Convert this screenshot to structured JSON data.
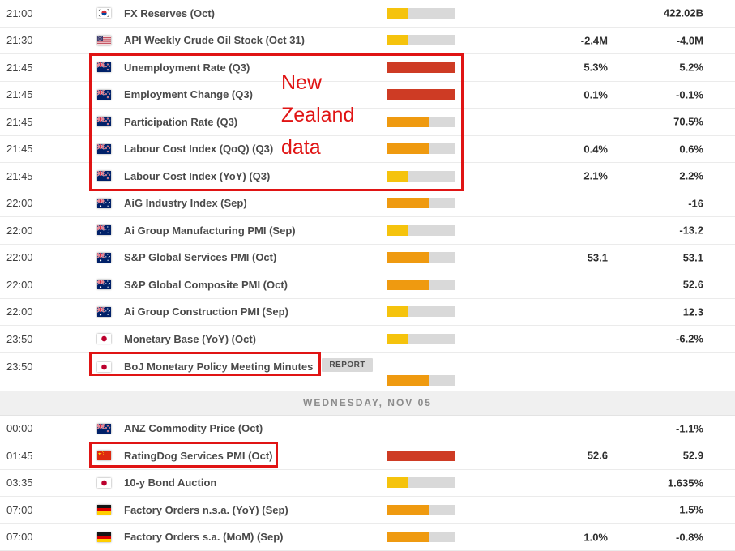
{
  "colors": {
    "impact_low": "#F5C30D",
    "impact_medium": "#EF9A10",
    "impact_high": "#CE3B24",
    "impact_track": "#D9D9D9",
    "annotation_red": "#E01414"
  },
  "annotations": {
    "nz_note": "New Zealand data",
    "nz_note_lines": [
      "New",
      "Zealand",
      "data"
    ]
  },
  "table": {
    "rows": [
      {
        "time": "21:00",
        "country": "south-korea",
        "event": "FX Reserves (Oct)",
        "impact": "low",
        "consensus": "",
        "previous": "422.02B"
      },
      {
        "time": "21:30",
        "country": "united-states",
        "event": "API Weekly Crude Oil Stock (Oct 31)",
        "impact": "low",
        "consensus": "-2.4M",
        "previous": "-4.0M"
      },
      {
        "time": "21:45",
        "country": "new-zealand",
        "event": "Unemployment Rate (Q3)",
        "impact": "high",
        "consensus": "5.3%",
        "previous": "5.2%"
      },
      {
        "time": "21:45",
        "country": "new-zealand",
        "event": "Employment Change (Q3)",
        "impact": "high",
        "consensus": "0.1%",
        "previous": "-0.1%"
      },
      {
        "time": "21:45",
        "country": "new-zealand",
        "event": "Participation Rate (Q3)",
        "impact": "medium",
        "consensus": "",
        "previous": "70.5%"
      },
      {
        "time": "21:45",
        "country": "new-zealand",
        "event": "Labour Cost Index (QoQ) (Q3)",
        "impact": "medium",
        "consensus": "0.4%",
        "previous": "0.6%"
      },
      {
        "time": "21:45",
        "country": "new-zealand",
        "event": "Labour Cost Index (YoY) (Q3)",
        "impact": "low",
        "consensus": "2.1%",
        "previous": "2.2%"
      },
      {
        "time": "22:00",
        "country": "australia",
        "event": "AiG Industry Index (Sep)",
        "impact": "medium",
        "consensus": "",
        "previous": "-16"
      },
      {
        "time": "22:00",
        "country": "australia",
        "event": "Ai Group Manufacturing PMI (Sep)",
        "impact": "low",
        "consensus": "",
        "previous": "-13.2"
      },
      {
        "time": "22:00",
        "country": "australia",
        "event": "S&P Global Services PMI (Oct)",
        "impact": "medium",
        "consensus": "53.1",
        "previous": "53.1"
      },
      {
        "time": "22:00",
        "country": "australia",
        "event": "S&P Global Composite PMI (Oct)",
        "impact": "medium",
        "consensus": "",
        "previous": "52.6"
      },
      {
        "time": "22:00",
        "country": "australia",
        "event": "Ai Group Construction PMI (Sep)",
        "impact": "low",
        "consensus": "",
        "previous": "12.3"
      },
      {
        "time": "23:50",
        "country": "japan",
        "event": "Monetary Base (YoY) (Oct)",
        "impact": "low",
        "consensus": "",
        "previous": "-6.2%"
      },
      {
        "time": "23:50",
        "country": "japan",
        "event": "BoJ Monetary Policy Meeting Minutes",
        "impact": "medium",
        "consensus": "",
        "previous": "",
        "badge": "REPORT"
      },
      {
        "type": "separator",
        "label": "WEDNESDAY, NOV 05"
      },
      {
        "time": "00:00",
        "country": "new-zealand",
        "event": "ANZ Commodity Price (Oct)",
        "impact": "none",
        "consensus": "",
        "previous": "-1.1%"
      },
      {
        "time": "01:45",
        "country": "china",
        "event": "RatingDog Services PMI (Oct)",
        "impact": "high",
        "consensus": "52.6",
        "previous": "52.9"
      },
      {
        "time": "03:35",
        "country": "japan",
        "event": "10-y Bond Auction",
        "impact": "low",
        "consensus": "",
        "previous": "1.635%"
      },
      {
        "time": "07:00",
        "country": "germany",
        "event": "Factory Orders n.s.a. (YoY) (Sep)",
        "impact": "medium",
        "consensus": "",
        "previous": "1.5%"
      },
      {
        "time": "07:00",
        "country": "germany",
        "event": "Factory Orders s.a. (MoM) (Sep)",
        "impact": "medium",
        "consensus": "1.0%",
        "previous": "-0.8%"
      }
    ]
  }
}
